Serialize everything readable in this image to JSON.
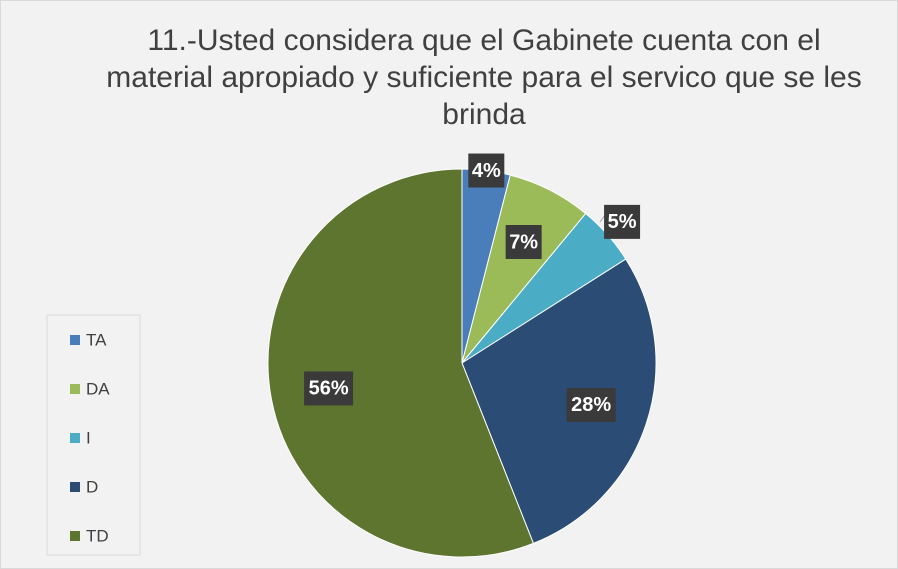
{
  "chart_data": {
    "type": "pie",
    "title": "11.-Usted considera que el Gabinete cuenta con el material apropiado y suficiente para el servico que se les brinda",
    "categories": [
      "TA",
      "DA",
      "I",
      "D",
      "TD"
    ],
    "values": [
      4,
      7,
      5,
      28,
      56
    ],
    "value_labels": [
      "4%",
      "7%",
      "5%",
      "28%",
      "56%"
    ],
    "colors": [
      "#4a7ebb",
      "#9bbb59",
      "#4bacc6",
      "#2b4c74",
      "#5e7530"
    ],
    "legend": "left"
  }
}
